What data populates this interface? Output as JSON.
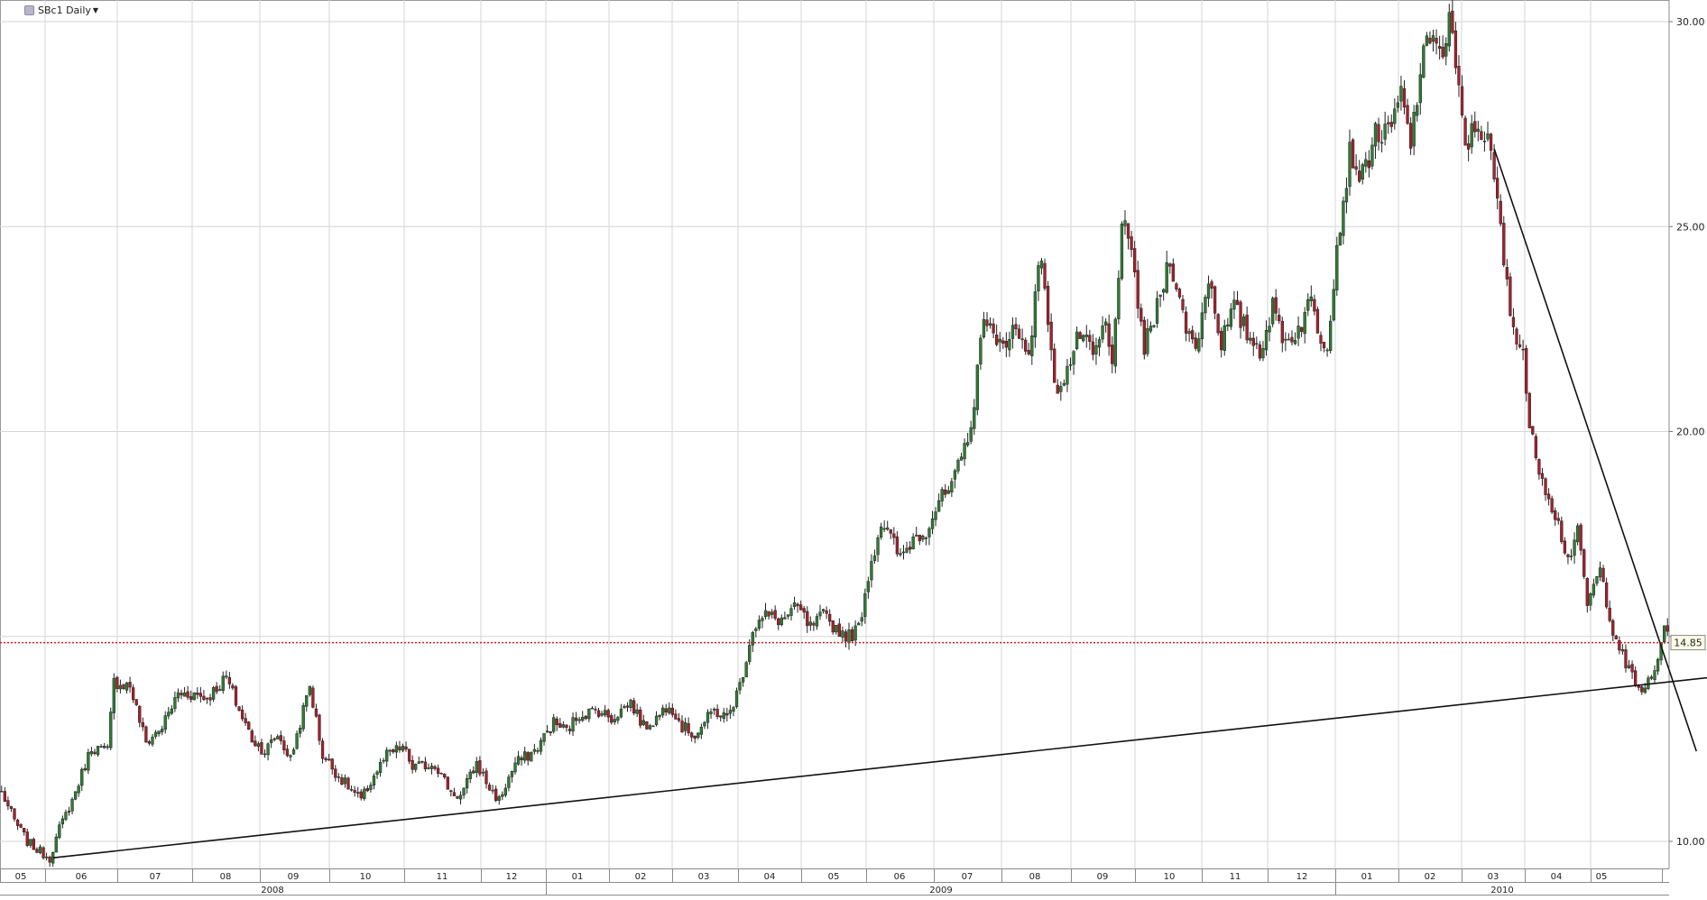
{
  "header": {
    "symbol_label": "SBc1 Daily",
    "dropdown_icon": "caret-down-icon"
  },
  "last_price_label": "14.85",
  "colors": {
    "up": "#2e7d32",
    "down": "#a8202a",
    "grid": "#d6d6d6",
    "price_line": "#d02020"
  },
  "chart_data": {
    "type": "candlestick",
    "title": "",
    "y_ticks": [
      "30.00",
      "25.00",
      "20.00",
      "10.00"
    ],
    "ylim": [
      9.4,
      30.5
    ],
    "grid": true,
    "last_price": 14.85,
    "month_ticks": [
      "05",
      "06",
      "07",
      "08",
      "09",
      "10",
      "11",
      "12",
      "01",
      "02",
      "03",
      "04",
      "05",
      "06",
      "07",
      "08",
      "09",
      "10",
      "11",
      "12",
      "01",
      "02",
      "03",
      "04",
      "05"
    ],
    "year_labels": [
      "2008",
      "2009",
      "2010"
    ],
    "price_path": [
      [
        0,
        11.2
      ],
      [
        4,
        10.5
      ],
      [
        8,
        10.0
      ],
      [
        11,
        9.8
      ],
      [
        15,
        9.6
      ],
      [
        18,
        10.3
      ],
      [
        22,
        11.0
      ],
      [
        28,
        12.3
      ],
      [
        33,
        12.2
      ],
      [
        35,
        13.9
      ],
      [
        40,
        13.8
      ],
      [
        45,
        12.4
      ],
      [
        50,
        12.8
      ],
      [
        55,
        13.6
      ],
      [
        60,
        13.6
      ],
      [
        64,
        13.5
      ],
      [
        70,
        14.0
      ],
      [
        74,
        13.2
      ],
      [
        78,
        12.5
      ],
      [
        82,
        12.2
      ],
      [
        86,
        12.6
      ],
      [
        90,
        12.0
      ],
      [
        96,
        13.8
      ],
      [
        100,
        12.1
      ],
      [
        106,
        11.5
      ],
      [
        112,
        11.0
      ],
      [
        116,
        11.6
      ],
      [
        120,
        12.1
      ],
      [
        125,
        12.3
      ],
      [
        128,
        11.8
      ],
      [
        135,
        11.9
      ],
      [
        140,
        11.2
      ],
      [
        143,
        11.1
      ],
      [
        148,
        11.9
      ],
      [
        152,
        11.3
      ],
      [
        155,
        11.0
      ],
      [
        160,
        11.9
      ],
      [
        166,
        12.2
      ],
      [
        172,
        12.9
      ],
      [
        176,
        12.7
      ],
      [
        180,
        13.1
      ],
      [
        186,
        13.2
      ],
      [
        190,
        13.0
      ],
      [
        196,
        13.4
      ],
      [
        200,
        12.8
      ],
      [
        204,
        13.0
      ],
      [
        208,
        13.4
      ],
      [
        212,
        12.8
      ],
      [
        216,
        12.6
      ],
      [
        222,
        13.2
      ],
      [
        226,
        13.0
      ],
      [
        230,
        13.8
      ],
      [
        234,
        15.2
      ],
      [
        238,
        15.5
      ],
      [
        243,
        15.4
      ],
      [
        248,
        15.7
      ],
      [
        252,
        15.2
      ],
      [
        256,
        15.5
      ],
      [
        260,
        15.2
      ],
      [
        264,
        15.0
      ],
      [
        267,
        15.2
      ],
      [
        270,
        16.5
      ],
      [
        274,
        17.8
      ],
      [
        277,
        17.4
      ],
      [
        280,
        16.9
      ],
      [
        284,
        17.4
      ],
      [
        288,
        17.6
      ],
      [
        292,
        18.3
      ],
      [
        296,
        18.6
      ],
      [
        300,
        19.6
      ],
      [
        303,
        20.6
      ],
      [
        306,
        23.0
      ],
      [
        310,
        22.0
      ],
      [
        315,
        22.5
      ],
      [
        320,
        22.0
      ],
      [
        324,
        24.4
      ],
      [
        328,
        21.0
      ],
      [
        332,
        21.5
      ],
      [
        336,
        22.4
      ],
      [
        340,
        21.8
      ],
      [
        344,
        22.6
      ],
      [
        346,
        21.5
      ],
      [
        349,
        25.2
      ],
      [
        353,
        23.8
      ],
      [
        356,
        22.0
      ],
      [
        360,
        23.0
      ],
      [
        364,
        24.3
      ],
      [
        368,
        22.8
      ],
      [
        372,
        22.0
      ],
      [
        376,
        23.8
      ],
      [
        380,
        22.2
      ],
      [
        384,
        23.0
      ],
      [
        388,
        22.4
      ],
      [
        392,
        22.0
      ],
      [
        396,
        23.0
      ],
      [
        400,
        22.2
      ],
      [
        404,
        22.5
      ],
      [
        408,
        23.2
      ],
      [
        411,
        22.3
      ],
      [
        413,
        22.2
      ],
      [
        416,
        24.5
      ],
      [
        420,
        26.8
      ],
      [
        424,
        26.2
      ],
      [
        428,
        27.3
      ],
      [
        432,
        27.2
      ],
      [
        436,
        28.2
      ],
      [
        439,
        27.0
      ],
      [
        442,
        28.8
      ],
      [
        446,
        29.9
      ],
      [
        449,
        29.0
      ],
      [
        451,
        30.1
      ],
      [
        453,
        28.8
      ],
      [
        456,
        27.0
      ],
      [
        460,
        27.5
      ],
      [
        463,
        27.1
      ],
      [
        466,
        25.6
      ],
      [
        470,
        22.8
      ],
      [
        474,
        22.0
      ],
      [
        476,
        20.0
      ],
      [
        480,
        18.9
      ],
      [
        484,
        18.0
      ],
      [
        488,
        16.9
      ],
      [
        491,
        17.5
      ],
      [
        494,
        15.8
      ],
      [
        498,
        16.6
      ],
      [
        502,
        15.2
      ],
      [
        506,
        14.3
      ],
      [
        510,
        13.7
      ],
      [
        514,
        13.9
      ],
      [
        516,
        14.4
      ],
      [
        518,
        15.3
      ],
      [
        519,
        15.2
      ]
    ],
    "annotations": [
      {
        "type": "trendline",
        "from": [
          16,
          9.6
        ],
        "to": [
          544,
          14.1
        ]
      },
      {
        "type": "trendline",
        "from": [
          465,
          26.9
        ],
        "to": [
          528,
          12.2
        ]
      },
      {
        "type": "horizontal-line",
        "value": 14.85,
        "style": "dotted"
      }
    ]
  }
}
